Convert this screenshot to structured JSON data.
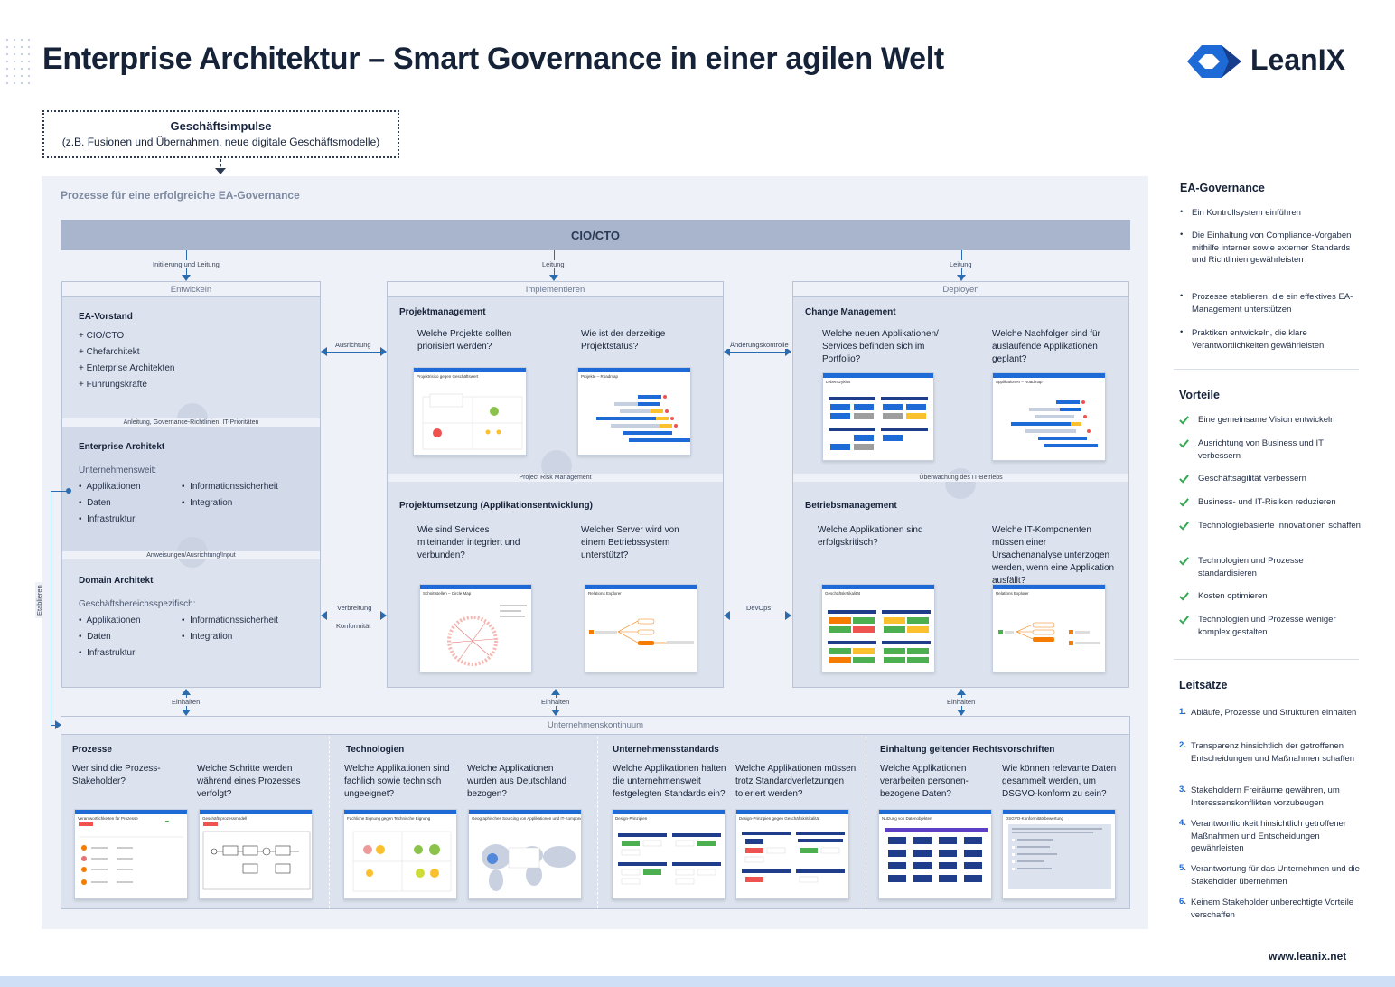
{
  "header": {
    "title": "Enterprise Architektur – Smart Governance in einer agilen Welt",
    "logo_text": "LeanIX",
    "brand_color": "#1e6ad6"
  },
  "impulse": {
    "title": "Geschäftsimpulse",
    "subtitle": "(z.B. Fusionen und Übernahmen, neue digitale Geschäftsmodelle)"
  },
  "process": {
    "title": "Prozesse für eine erfolgreiche EA-Governance",
    "top_bar": "CIO/CTO",
    "lead_labels": [
      "Initiierung und Leitung",
      "Leitung",
      "Leitung"
    ],
    "connectors": {
      "ausrichtung": "Ausrichtung",
      "aenderungskontrolle": "Änderungskontrolle",
      "verbreitung": "Verbreitung",
      "konformitaet": "Konformität",
      "devops": "DevOps",
      "etablieren": "Etablieren",
      "einhalten": "Einhalten"
    },
    "entwickeln": {
      "head": "Entwickeln",
      "ea_vorstand": {
        "title": "EA-Vorstand",
        "items": [
          "+ CIO/CTO",
          "+ Chefarchitekt",
          "+ Enterprise Architekten",
          "+ Führungskräfte"
        ]
      },
      "sep1": "Anleitung, Governance-Richtlinien, IT-Prioritäten",
      "enterprise_architekt": {
        "title": "Enterprise Architekt",
        "scope": "Unternehmensweit:",
        "left": [
          "Applikationen",
          "Daten",
          "Infrastruktur"
        ],
        "right": [
          "Informationssicherheit",
          "Integration"
        ]
      },
      "sep2": "Anweisungen/Ausrichtung/Input",
      "domain_architekt": {
        "title": "Domain Architekt",
        "scope": "Geschäftsbereichsspezifisch:",
        "left": [
          "Applikationen",
          "Daten",
          "Infrastruktur"
        ],
        "right": [
          "Informationssicherheit",
          "Integration"
        ]
      }
    },
    "implementieren": {
      "head": "Implementieren",
      "pm_title": "Projektmanagement",
      "pm_q1": "Welche Projekte sollten priorisiert werden?",
      "pm_q2": "Wie ist der derzeitige Projektstatus?",
      "pm_shot1": "Projektrisiko gegen Geschäftswert",
      "pm_shot2": "Projekte – Roadmap",
      "sep": "Project Risk Management",
      "pu_title": "Projektumsetzung (Applikationsentwicklung)",
      "pu_q1": "Wie sind Services miteinander integriert und verbunden?",
      "pu_q2": "Welcher Server wird von einem Betriebssystem unterstützt?",
      "pu_shot1": "Schnittstellen – Circle Map",
      "pu_shot2": "Relations Explorer"
    },
    "deployen": {
      "head": "Deployen",
      "cm_title": "Change Management",
      "cm_q1": "Welche neuen Applikationen/ Services befinden sich im Portfolio?",
      "cm_q2": "Welche Nachfolger sind für auslaufende Applikationen geplant?",
      "cm_shot1": "Lebenszyklus",
      "cm_shot2": "Applikationen – Roadmap",
      "sep": "Überwachung des IT-Betriebs",
      "bm_title": "Betriebsmanagement",
      "bm_q1": "Welche Applikationen sind erfolgskritisch?",
      "bm_q2": "Welche IT-Komponenten müssen einer Ursachenanalyse unterzogen werden, wenn eine Applikation ausfällt?",
      "bm_shot1": "Geschäftskritikalität",
      "bm_shot2": "Relations Explorer"
    },
    "kontinuum": {
      "head": "Unternehmenskontinuum",
      "sections": [
        {
          "title": "Prozesse",
          "q1": "Wer sind die Prozess-Stakeholder?",
          "q2": "Welche Schritte werden während eines Prozesses verfolgt?",
          "s1": "Verantwortlichkeiten für Prozesse",
          "s2": "Geschäftsprozessmodell"
        },
        {
          "title": "Technologien",
          "q1": "Welche Applikationen sind fachlich sowie technisch ungeeignet?",
          "q2": "Welche Applikationen wurden aus Deutschland bezogen?",
          "s1": "Fachliche Eignung gegen Technische Eignung",
          "s2": "Geographisches Sourcing von Applikationen und IT-Komponenten"
        },
        {
          "title": "Unternehmensstandards",
          "q1": "Welche Applikationen halten die unternehmensweit festgelegten Standards ein?",
          "q2": "Welche Applikationen müssen trotz Standardverletzungen toleriert werden?",
          "s1": "Design-Prinzipien",
          "s2": "Design-Prinzipien gegen Geschäftskritikalität"
        },
        {
          "title": "Einhaltung geltender Rechtsvorschriften",
          "q1": "Welche Applikationen verarbeiten personen-bezogene Daten?",
          "q2": "Wie können relevante Daten gesammelt werden, um DSGVO-konform zu sein?",
          "s1": "Nutzung von Datenobjekten",
          "s2": "DSGVO-Konformitätsbewertung"
        }
      ]
    }
  },
  "sidebar": {
    "governance": {
      "title": "EA-Governance",
      "items": [
        "Ein Kontrollsystem einführen",
        "Die Einhaltung von Compliance-Vorgaben mithilfe interner sowie externer Standards und Richtlinien gewährleisten",
        "Prozesse etablieren, die ein effektives EA-Management unterstützen",
        "Praktiken entwickeln, die klare Verantwortlichkeiten gewährleisten"
      ]
    },
    "vorteile": {
      "title": "Vorteile",
      "check_color": "#34a853",
      "items": [
        "Eine gemeinsame Vision entwickeln",
        "Ausrichtung von Business und IT verbessern",
        "Geschäftsagilität verbessern",
        "Business- und IT-Risiken reduzieren",
        "Technologiebasierte Innovationen schaffen",
        "Technologien und Prozesse standardisieren",
        "Kosten optimieren",
        "Technologien und Prozesse weniger komplex gestalten"
      ]
    },
    "leitsaetze": {
      "title": "Leitsätze",
      "items": [
        "Abläufe, Prozesse und Strukturen einhalten",
        "Transparenz hinsichtlich der getroffenen Entscheidungen und Maßnahmen schaffen",
        "Stakeholdern Freiräume gewähren, um Interessenskonflikten vorzubeugen",
        "Verantwortlichkeit hinsichtlich getroffener Maßnahmen und Entscheidungen gewährleisten",
        "Verantwortung für das Unternehmen und die Stakeholder übernehmen",
        "Keinem Stakeholder unberechtigte Vorteile verschaffen"
      ],
      "numbers": [
        "1.",
        "2.",
        "3.",
        "4.",
        "5.",
        "6."
      ]
    }
  },
  "footer": {
    "url": "www.leanix.net"
  }
}
